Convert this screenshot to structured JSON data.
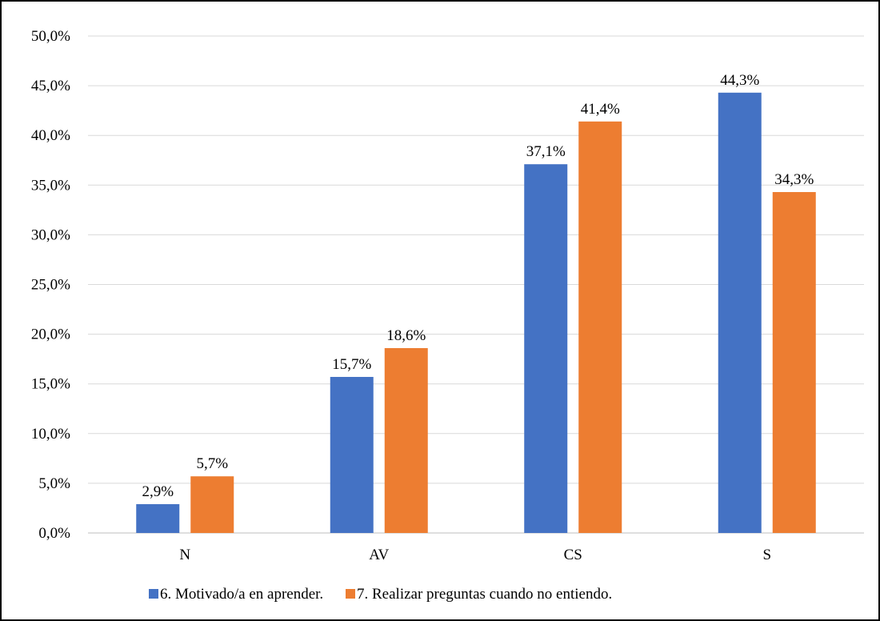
{
  "chart_data": {
    "type": "bar",
    "categories": [
      "N",
      "AV",
      "CS",
      "S"
    ],
    "series": [
      {
        "name": "6. Motivado/a en aprender.",
        "values": [
          2.9,
          15.7,
          37.1,
          44.3
        ],
        "color": "#4472C4",
        "labels": [
          "2,9%",
          "15,7%",
          "37,1%",
          "44,3%"
        ]
      },
      {
        "name": "7. Realizar preguntas cuando no entiendo.",
        "values": [
          5.7,
          18.6,
          41.4,
          34.3
        ],
        "color": "#ED7D31",
        "labels": [
          "5,7%",
          "18,6%",
          "41,4%",
          "34,3%"
        ]
      }
    ],
    "ylim": [
      0,
      50
    ],
    "yticks": [
      0,
      5,
      10,
      15,
      20,
      25,
      30,
      35,
      40,
      45,
      50
    ],
    "ytick_labels": [
      "0,0%",
      "5,0%",
      "10,0%",
      "15,0%",
      "20,0%",
      "25,0%",
      "30,0%",
      "35,0%",
      "40,0%",
      "45,0%",
      "50,0%"
    ],
    "grid": true,
    "legend_position": "bottom",
    "gridline_color": "#D9D9D9"
  }
}
